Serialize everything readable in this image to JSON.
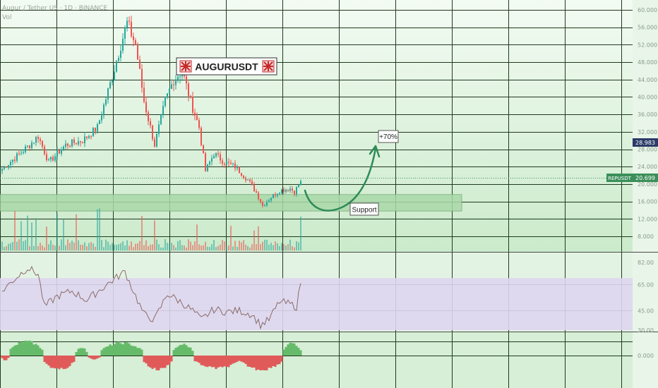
{
  "header": {
    "symbol_line": "Augur / Tether US · 1D · BINANCE",
    "volume_label": "Vol"
  },
  "annotations": {
    "title_label": "AUGURUSDT",
    "target_label": "+70%",
    "support_label": "Support"
  },
  "price_axis": {
    "ticks": [
      "60.000",
      "56.000",
      "52.000",
      "48.000",
      "44.000",
      "40.000",
      "36.000",
      "32.000",
      "28.000",
      "24.000",
      "20.000",
      "16.000",
      "12.000",
      "8.000"
    ],
    "current_symbol": "REPUSDT",
    "current_price": "20.699",
    "marker_price": "28.983"
  },
  "rsi_axis": {
    "ticks": [
      "82.00",
      "65.00",
      "45.00",
      "30.00"
    ]
  },
  "momentum_axis": {
    "ticks": [
      "0.000"
    ]
  },
  "colors": {
    "background_top": "#f2faf2",
    "background_bottom": "#cfeccf",
    "up_candle": "#26a69a",
    "down_candle": "#ef5350",
    "support_zone": "#a5d6a7",
    "arrow": "#2e8b57",
    "rsi_band": "#d9d2ec",
    "rsi_line": "#8b6b6b",
    "momentum_pos": "#66bb6a",
    "momentum_neg": "#e05a5a",
    "price_tag": "#3b8f5a",
    "marker_tag": "#2b3a67"
  },
  "chart_data": {
    "type": "candlestick",
    "interval": "1D",
    "price_range": [
      10,
      62
    ],
    "rsi_range": [
      25,
      85
    ],
    "support_zone": [
      13.8,
      17.6
    ],
    "target_price": 28.983,
    "current_price": 20.699,
    "waypoints": [
      {
        "i": 0,
        "p": 23.5
      },
      {
        "i": 6,
        "p": 26
      },
      {
        "i": 13,
        "p": 29
      },
      {
        "i": 17,
        "p": 31
      },
      {
        "i": 22,
        "p": 25
      },
      {
        "i": 30,
        "p": 29
      },
      {
        "i": 38,
        "p": 30
      },
      {
        "i": 45,
        "p": 33
      },
      {
        "i": 51,
        "p": 43
      },
      {
        "i": 56,
        "p": 52
      },
      {
        "i": 59,
        "p": 57
      },
      {
        "i": 63,
        "p": 52
      },
      {
        "i": 67,
        "p": 39
      },
      {
        "i": 72,
        "p": 29
      },
      {
        "i": 77,
        "p": 39
      },
      {
        "i": 81,
        "p": 44
      },
      {
        "i": 85,
        "p": 46
      },
      {
        "i": 89,
        "p": 39
      },
      {
        "i": 93,
        "p": 33
      },
      {
        "i": 96,
        "p": 23
      },
      {
        "i": 100,
        "p": 27
      },
      {
        "i": 105,
        "p": 25
      },
      {
        "i": 110,
        "p": 24
      },
      {
        "i": 116,
        "p": 21
      },
      {
        "i": 120,
        "p": 18
      },
      {
        "i": 123,
        "p": 15
      },
      {
        "i": 127,
        "p": 17
      },
      {
        "i": 131,
        "p": 18.5
      },
      {
        "i": 136,
        "p": 19
      },
      {
        "i": 138,
        "p": 18.2
      },
      {
        "i": 141,
        "p": 20.7
      }
    ],
    "rsi_waypoints": [
      {
        "i": 0,
        "v": 60
      },
      {
        "i": 5,
        "v": 68
      },
      {
        "i": 12,
        "v": 78
      },
      {
        "i": 17,
        "v": 73
      },
      {
        "i": 20,
        "v": 48
      },
      {
        "i": 26,
        "v": 56
      },
      {
        "i": 33,
        "v": 60
      },
      {
        "i": 40,
        "v": 53
      },
      {
        "i": 47,
        "v": 62
      },
      {
        "i": 52,
        "v": 68
      },
      {
        "i": 58,
        "v": 75
      },
      {
        "i": 62,
        "v": 60
      },
      {
        "i": 67,
        "v": 42
      },
      {
        "i": 72,
        "v": 38
      },
      {
        "i": 78,
        "v": 58
      },
      {
        "i": 84,
        "v": 52
      },
      {
        "i": 90,
        "v": 45
      },
      {
        "i": 94,
        "v": 38
      },
      {
        "i": 100,
        "v": 46
      },
      {
        "i": 106,
        "v": 44
      },
      {
        "i": 112,
        "v": 45
      },
      {
        "i": 118,
        "v": 42
      },
      {
        "i": 122,
        "v": 34
      },
      {
        "i": 126,
        "v": 38
      },
      {
        "i": 131,
        "v": 52
      },
      {
        "i": 136,
        "v": 50
      },
      {
        "i": 139,
        "v": 48
      },
      {
        "i": 141,
        "v": 66
      }
    ],
    "momentum_segments": [
      {
        "start": 0,
        "end": 3,
        "v": -0.4
      },
      {
        "start": 4,
        "end": 19,
        "v": 1.0
      },
      {
        "start": 20,
        "end": 34,
        "v": -1.0
      },
      {
        "start": 35,
        "end": 40,
        "v": 0.6
      },
      {
        "start": 41,
        "end": 46,
        "v": -0.3
      },
      {
        "start": 47,
        "end": 66,
        "v": 0.9
      },
      {
        "start": 67,
        "end": 80,
        "v": -1.0
      },
      {
        "start": 81,
        "end": 90,
        "v": 0.8
      },
      {
        "start": 91,
        "end": 112,
        "v": -0.9
      },
      {
        "start": 113,
        "end": 132,
        "v": -1.0
      },
      {
        "start": 133,
        "end": 141,
        "v": 0.9
      }
    ]
  }
}
